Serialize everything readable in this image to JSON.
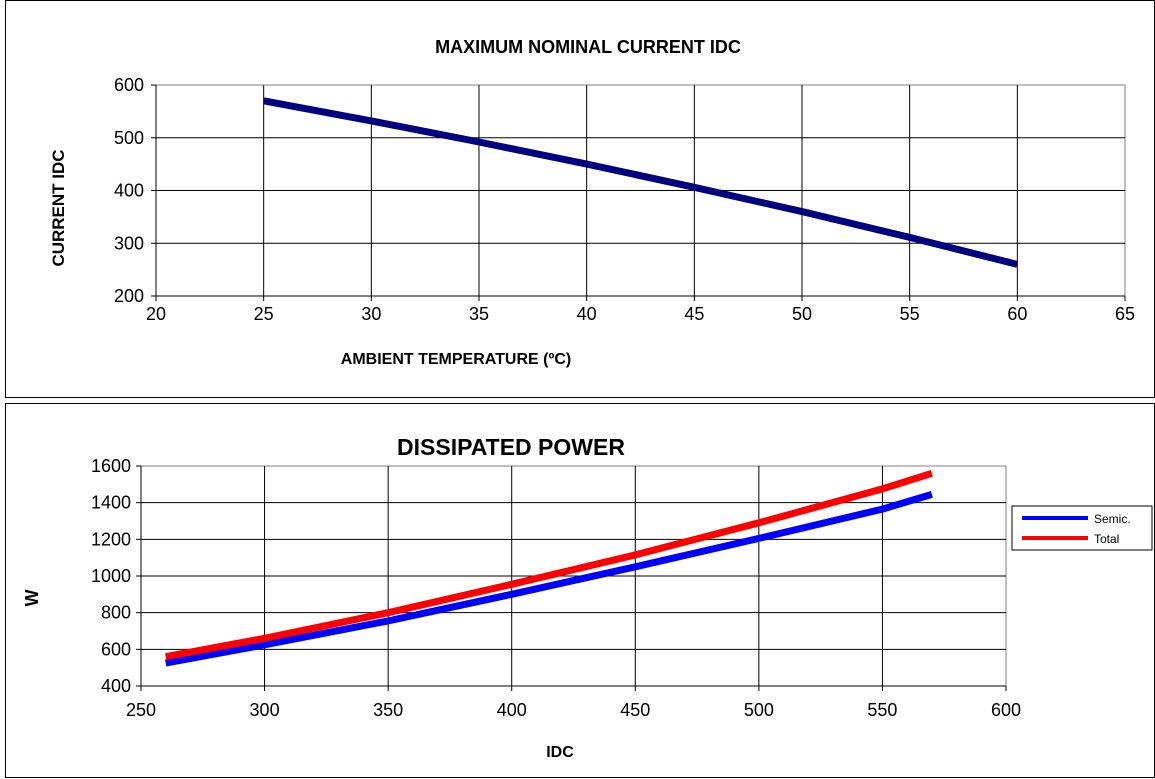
{
  "chart_data": [
    {
      "type": "line",
      "title": "MAXIMUM NOMINAL CURRENT IDC",
      "xlabel": "AMBIENT TEMPERATURE (ºC)",
      "ylabel": "CURRENT IDC",
      "xlim": [
        20,
        65
      ],
      "ylim": [
        200,
        600
      ],
      "xticks": [
        "20",
        "25",
        "30",
        "35",
        "40",
        "45",
        "50",
        "55",
        "60",
        "65"
      ],
      "yticks": [
        "200",
        "300",
        "400",
        "500",
        "600"
      ],
      "grid": true,
      "legend": "none",
      "series": [
        {
          "color": "#000080",
          "x": [
            25,
            30,
            35,
            40,
            45,
            50,
            55,
            60
          ],
          "y": [
            570,
            532,
            492,
            450,
            406,
            360,
            311,
            260
          ]
        }
      ]
    },
    {
      "type": "line",
      "title": "DISSIPATED POWER",
      "xlabel": "IDC",
      "ylabel": "W",
      "xlim": [
        250,
        600
      ],
      "ylim": [
        400,
        1600
      ],
      "xticks": [
        "250",
        "300",
        "350",
        "400",
        "450",
        "500",
        "550",
        "600"
      ],
      "yticks": [
        "400",
        "600",
        "800",
        "1000",
        "1200",
        "1400",
        "1600"
      ],
      "grid": true,
      "legend": "right",
      "series": [
        {
          "name": "Semic.",
          "color": "#0000FF",
          "x": [
            260,
            300,
            350,
            400,
            450,
            500,
            550,
            570
          ],
          "y": [
            525,
            625,
            755,
            900,
            1050,
            1205,
            1365,
            1445
          ]
        },
        {
          "name": "Total",
          "color": "#FF0000",
          "x": [
            260,
            300,
            350,
            400,
            450,
            500,
            550,
            570
          ],
          "y": [
            560,
            660,
            800,
            955,
            1115,
            1290,
            1475,
            1560
          ]
        }
      ]
    }
  ]
}
